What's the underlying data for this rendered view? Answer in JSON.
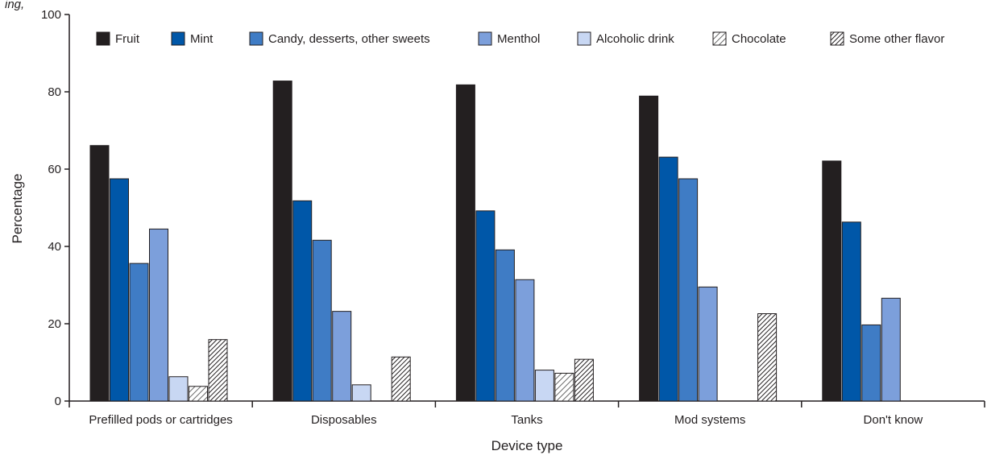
{
  "header_fragment": "ing, ",
  "chart_data": {
    "type": "bar",
    "title": "",
    "xlabel": "Device type",
    "ylabel": "Percentage",
    "ylim": [
      0,
      100
    ],
    "yticks": [
      0,
      20,
      40,
      60,
      80,
      100
    ],
    "legend_position": "top",
    "categories": [
      "Prefilled pods or cartridges",
      "Disposables",
      "Tanks",
      "Mod systems",
      "Don't know"
    ],
    "series": [
      {
        "name": "Fruit",
        "color": "#231f20",
        "pattern": "solid",
        "values": [
          66.1,
          82.8,
          81.8,
          78.9,
          62.1
        ]
      },
      {
        "name": "Mint",
        "color": "#0057a8",
        "pattern": "solid",
        "values": [
          57.5,
          51.8,
          49.2,
          63.1,
          46.3
        ]
      },
      {
        "name": "Candy, desserts, other sweets",
        "color": "#3f7cc5",
        "pattern": "solid",
        "values": [
          35.6,
          41.6,
          39.1,
          57.5,
          19.7
        ]
      },
      {
        "name": "Menthol",
        "color": "#7c9fdb",
        "pattern": "solid",
        "values": [
          44.5,
          23.2,
          31.4,
          29.5,
          26.6
        ]
      },
      {
        "name": "Alcoholic drink",
        "color": "#c8d7f3",
        "pattern": "solid",
        "values": [
          6.3,
          4.2,
          8.0,
          null,
          null
        ]
      },
      {
        "name": "Chocolate",
        "color": "#7a7a7a",
        "pattern": "hatch-light",
        "values": [
          3.8,
          null,
          7.2,
          null,
          null
        ]
      },
      {
        "name": "Some other flavor",
        "color": "#231f20",
        "pattern": "hatch-dark",
        "values": [
          15.9,
          11.4,
          10.8,
          22.6,
          null
        ]
      }
    ]
  }
}
